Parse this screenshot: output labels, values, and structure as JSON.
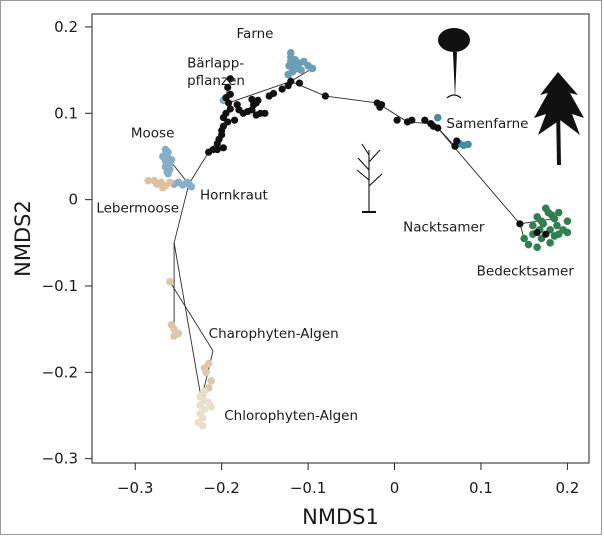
{
  "chart_data": {
    "type": "scatter",
    "title": "",
    "xlabel": "NMDS1",
    "ylabel": "NMDS2",
    "xlim": [
      -0.35,
      0.225
    ],
    "ylim": [
      -0.305,
      0.215
    ],
    "xticks": [
      -0.3,
      -0.2,
      -0.1,
      0,
      0.1,
      0.2
    ],
    "xtick_labels": [
      "−0.3",
      "−0.2",
      "−0.1",
      "0",
      "0.1",
      "0.2"
    ],
    "yticks": [
      -0.3,
      -0.2,
      -0.1,
      0,
      0.1,
      0.2
    ],
    "ytick_labels": [
      "−0.3",
      "−0.2",
      "−0.1",
      "0",
      "0.1",
      "0.2"
    ],
    "colors": {
      "ferns": "#6a9fb5",
      "mosses": "#86aec6",
      "liverworts": "#ddc0a0",
      "charophytes": "#dcc7aa",
      "chlorophytes": "#e8dfcc",
      "gymnosperms": "#3f8fa0",
      "angiosperms": "#2f7f4f",
      "ancestral": "#111111"
    },
    "groups": [
      {
        "name": "Farne",
        "color_key": "ferns",
        "points": [
          [
            -0.12,
            0.17
          ],
          [
            -0.12,
            0.165
          ],
          [
            -0.115,
            0.162
          ],
          [
            -0.118,
            0.158
          ],
          [
            -0.122,
            0.155
          ],
          [
            -0.113,
            0.152
          ],
          [
            -0.118,
            0.148
          ],
          [
            -0.123,
            0.145
          ],
          [
            -0.11,
            0.158
          ],
          [
            -0.105,
            0.16
          ],
          [
            -0.1,
            0.155
          ],
          [
            -0.095,
            0.152
          ],
          [
            -0.108,
            0.15
          ],
          [
            -0.12,
            0.16
          ],
          [
            -0.115,
            0.155
          ]
        ]
      },
      {
        "name": "Bärlapp-pflanzen",
        "color_key": "mosses",
        "points": [
          [
            -0.195,
            0.118
          ],
          [
            -0.198,
            0.115
          ]
        ]
      },
      {
        "name": "Moose",
        "color_key": "mosses",
        "points": [
          [
            -0.265,
            0.058
          ],
          [
            -0.262,
            0.055
          ],
          [
            -0.265,
            0.052
          ],
          [
            -0.262,
            0.048
          ],
          [
            -0.265,
            0.045
          ],
          [
            -0.26,
            0.042
          ],
          [
            -0.265,
            0.038
          ],
          [
            -0.26,
            0.035
          ],
          [
            -0.263,
            0.032
          ],
          [
            -0.268,
            0.05
          ],
          [
            -0.258,
            0.046
          ],
          [
            -0.262,
            0.03
          ],
          [
            -0.255,
            0.018
          ],
          [
            -0.25,
            0.02
          ],
          [
            -0.245,
            0.017
          ],
          [
            -0.238,
            0.018
          ],
          [
            -0.235,
            0.015
          ],
          [
            -0.24,
            0.02
          ]
        ]
      },
      {
        "name": "Lebermoose",
        "color_key": "liverworts",
        "points": [
          [
            -0.285,
            0.022
          ],
          [
            -0.275,
            0.018
          ],
          [
            -0.27,
            0.02
          ],
          [
            -0.265,
            0.016
          ],
          [
            -0.26,
            0.02
          ],
          [
            -0.268,
            0.014
          ],
          [
            -0.278,
            0.022
          ]
        ]
      },
      {
        "name": "Charophyten-Algen",
        "color_key": "charophytes",
        "points": [
          [
            -0.26,
            -0.095
          ],
          [
            -0.258,
            -0.145
          ],
          [
            -0.255,
            -0.15
          ],
          [
            -0.25,
            -0.155
          ],
          [
            -0.255,
            -0.158
          ],
          [
            -0.22,
            -0.195
          ],
          [
            -0.215,
            -0.19
          ],
          [
            -0.218,
            -0.2
          ],
          [
            -0.212,
            -0.21
          ],
          [
            -0.215,
            -0.218
          ],
          [
            -0.222,
            -0.225
          ]
        ]
      },
      {
        "name": "Chlorophyten-Algen",
        "color_key": "chlorophytes",
        "points": [
          [
            -0.22,
            -0.222
          ],
          [
            -0.225,
            -0.228
          ],
          [
            -0.22,
            -0.233
          ],
          [
            -0.225,
            -0.238
          ],
          [
            -0.22,
            -0.243
          ],
          [
            -0.225,
            -0.248
          ],
          [
            -0.222,
            -0.253
          ],
          [
            -0.227,
            -0.258
          ],
          [
            -0.222,
            -0.262
          ],
          [
            -0.215,
            -0.235
          ],
          [
            -0.212,
            -0.24
          ]
        ]
      },
      {
        "name": "Nacktsamer",
        "color_key": "gymnosperms",
        "points": [
          [
            0.07,
            0.062
          ],
          [
            0.075,
            0.065
          ],
          [
            0.08,
            0.063
          ],
          [
            0.085,
            0.064
          ],
          [
            0.05,
            0.095
          ]
        ]
      },
      {
        "name": "Bedecktsamer",
        "color_key": "angiosperms",
        "points": [
          [
            0.17,
            -0.025
          ],
          [
            0.185,
            -0.022
          ],
          [
            0.19,
            -0.04
          ],
          [
            0.16,
            -0.04
          ],
          [
            0.2,
            -0.025
          ],
          [
            0.18,
            -0.035
          ],
          [
            0.175,
            -0.01
          ],
          [
            0.19,
            -0.015
          ],
          [
            0.165,
            -0.02
          ],
          [
            0.17,
            -0.045
          ],
          [
            0.195,
            -0.035
          ],
          [
            0.185,
            -0.042
          ],
          [
            0.155,
            -0.052
          ],
          [
            0.165,
            -0.055
          ],
          [
            0.15,
            -0.045
          ],
          [
            0.18,
            -0.05
          ],
          [
            0.178,
            -0.015
          ],
          [
            0.2,
            -0.038
          ],
          [
            0.16,
            -0.03
          ],
          [
            0.172,
            -0.028
          ],
          [
            0.188,
            -0.03
          ],
          [
            0.182,
            -0.018
          ],
          [
            0.168,
            -0.035
          ]
        ]
      },
      {
        "name": "Hornkraut",
        "color_key": "ancestral",
        "points": [
          [
            -0.19,
            0.14
          ],
          [
            -0.193,
            0.13
          ],
          [
            -0.19,
            0.122
          ],
          [
            -0.195,
            0.118
          ],
          [
            -0.192,
            0.112
          ],
          [
            -0.19,
            0.105
          ],
          [
            -0.195,
            0.1
          ],
          [
            -0.198,
            0.095
          ],
          [
            -0.193,
            0.09
          ],
          [
            -0.185,
            0.092
          ],
          [
            -0.198,
            0.085
          ],
          [
            -0.2,
            0.08
          ],
          [
            -0.2,
            0.075
          ],
          [
            -0.203,
            0.07
          ],
          [
            -0.205,
            0.065
          ],
          [
            -0.21,
            0.058
          ],
          [
            -0.215,
            0.055
          ],
          [
            -0.205,
            0.058
          ],
          [
            -0.198,
            0.06
          ],
          [
            -0.182,
            0.11
          ],
          [
            -0.18,
            0.104
          ],
          [
            -0.175,
            0.1
          ],
          [
            -0.17,
            0.102
          ],
          [
            -0.165,
            0.104
          ],
          [
            -0.16,
            0.098
          ],
          [
            -0.15,
            0.1
          ],
          [
            -0.163,
            0.11
          ],
          [
            -0.158,
            0.115
          ],
          [
            -0.155,
            0.1
          ],
          [
            -0.165,
            0.116
          ],
          [
            -0.16,
            0.112
          ],
          [
            -0.145,
            0.12
          ],
          [
            -0.14,
            0.123
          ],
          [
            -0.13,
            0.128
          ],
          [
            -0.12,
            0.137
          ],
          [
            -0.123,
            0.132
          ],
          [
            -0.11,
            0.135
          ],
          [
            -0.08,
            0.12
          ],
          [
            -0.02,
            0.112
          ],
          [
            -0.017,
            0.107
          ],
          [
            -0.015,
            0.11
          ],
          [
            0.003,
            0.092
          ],
          [
            0.015,
            0.09
          ],
          [
            0.02,
            0.092
          ],
          [
            0.035,
            0.092
          ],
          [
            0.042,
            0.088
          ],
          [
            0.05,
            0.083
          ],
          [
            0.045,
            0.085
          ],
          [
            0.07,
            0.062
          ],
          [
            0.072,
            0.068
          ],
          [
            0.145,
            -0.028
          ],
          [
            0.175,
            -0.04
          ],
          [
            0.165,
            -0.038
          ]
        ]
      }
    ],
    "labels": [
      {
        "text": "Farne",
        "x": -0.14,
        "y": 0.187,
        "anchor": "end"
      },
      {
        "text": "Bärlapp-",
        "x": -0.24,
        "y": 0.153,
        "anchor": "start"
      },
      {
        "text": "pflanzen",
        "x": -0.24,
        "y": 0.133,
        "anchor": "start"
      },
      {
        "text": "Moose",
        "x": -0.305,
        "y": 0.072,
        "anchor": "start"
      },
      {
        "text": "Hornkraut",
        "x": -0.225,
        "y": 0.0,
        "anchor": "start"
      },
      {
        "text": "Lebermoose",
        "x": -0.345,
        "y": -0.015,
        "anchor": "start"
      },
      {
        "text": "Samenfarne",
        "x": 0.06,
        "y": 0.083,
        "anchor": "start"
      },
      {
        "text": "Nacktsamer",
        "x": 0.01,
        "y": -0.037,
        "anchor": "start"
      },
      {
        "text": "Bedecktsamer",
        "x": 0.095,
        "y": -0.088,
        "anchor": "start"
      },
      {
        "text": "Charophyten-Algen",
        "x": -0.215,
        "y": -0.16,
        "anchor": "start"
      },
      {
        "text": "Chlorophyten-Algen",
        "x": -0.197,
        "y": -0.255,
        "anchor": "start"
      }
    ],
    "tree_edges": [
      [
        [
          -0.12,
          0.137
        ],
        [
          -0.12,
          0.17
        ]
      ],
      [
        [
          -0.12,
          0.137
        ],
        [
          -0.095,
          0.152
        ]
      ],
      [
        [
          -0.193,
          0.13
        ],
        [
          -0.195,
          0.118
        ]
      ],
      [
        [
          -0.192,
          0.112
        ],
        [
          -0.12,
          0.137
        ]
      ],
      [
        [
          -0.12,
          0.137
        ],
        [
          -0.08,
          0.12
        ]
      ],
      [
        [
          -0.08,
          0.12
        ],
        [
          -0.02,
          0.112
        ]
      ],
      [
        [
          -0.02,
          0.112
        ],
        [
          0.015,
          0.09
        ]
      ],
      [
        [
          0.015,
          0.09
        ],
        [
          0.042,
          0.088
        ]
      ],
      [
        [
          0.042,
          0.088
        ],
        [
          0.05,
          0.083
        ]
      ],
      [
        [
          0.05,
          0.083
        ],
        [
          0.07,
          0.062
        ]
      ],
      [
        [
          0.07,
          0.062
        ],
        [
          0.085,
          0.064
        ]
      ],
      [
        [
          0.05,
          0.083
        ],
        [
          0.145,
          -0.028
        ]
      ],
      [
        [
          0.145,
          -0.028
        ],
        [
          0.185,
          -0.022
        ]
      ],
      [
        [
          0.145,
          -0.028
        ],
        [
          0.15,
          -0.045
        ]
      ],
      [
        [
          -0.203,
          0.07
        ],
        [
          -0.215,
          0.055
        ]
      ],
      [
        [
          -0.215,
          0.055
        ],
        [
          -0.238,
          0.018
        ]
      ],
      [
        [
          -0.238,
          0.018
        ],
        [
          -0.262,
          0.048
        ]
      ],
      [
        [
          -0.238,
          0.018
        ],
        [
          -0.275,
          0.018
        ]
      ],
      [
        [
          -0.238,
          0.018
        ],
        [
          -0.255,
          -0.05
        ]
      ],
      [
        [
          -0.255,
          -0.05
        ],
        [
          -0.255,
          -0.15
        ]
      ],
      [
        [
          -0.26,
          -0.095
        ],
        [
          -0.21,
          -0.175
        ]
      ],
      [
        [
          -0.21,
          -0.175
        ],
        [
          -0.222,
          -0.225
        ]
      ],
      [
        [
          -0.255,
          -0.05
        ],
        [
          -0.222,
          -0.24
        ]
      ]
    ]
  }
}
